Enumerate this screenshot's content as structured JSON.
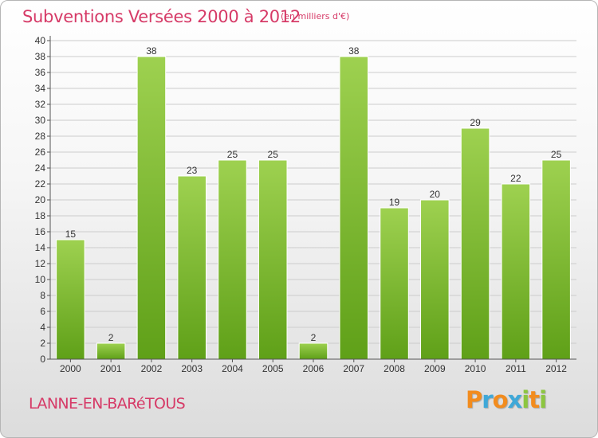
{
  "title": "Subventions Versées 2000 à 2012",
  "unit_note": "(en milliers d'€)",
  "commune": "LANNE-EN-BARéTOUS",
  "logo": {
    "letters": [
      "P",
      "r",
      "o",
      "x",
      "i",
      "t",
      "i"
    ],
    "colors": [
      "#f28c1e",
      "#3fa8d8",
      "#f28c1e",
      "#3fa8d8",
      "#8cc63f",
      "#f28c1e",
      "#8cc63f"
    ]
  },
  "colors": {
    "title": "#d63a67",
    "bar_light": "#9ed150",
    "bar_dark": "#5fa018",
    "grid": "#cccccc",
    "axis_text": "#333333"
  },
  "chart_data": {
    "type": "bar",
    "categories": [
      "2000",
      "2001",
      "2002",
      "2003",
      "2004",
      "2005",
      "2006",
      "2007",
      "2008",
      "2009",
      "2010",
      "2011",
      "2012"
    ],
    "values": [
      15,
      2,
      38,
      23,
      25,
      25,
      2,
      38,
      19,
      20,
      29,
      22,
      25
    ],
    "ylim": [
      0,
      40
    ],
    "ytick_step": 2,
    "grid": true
  }
}
